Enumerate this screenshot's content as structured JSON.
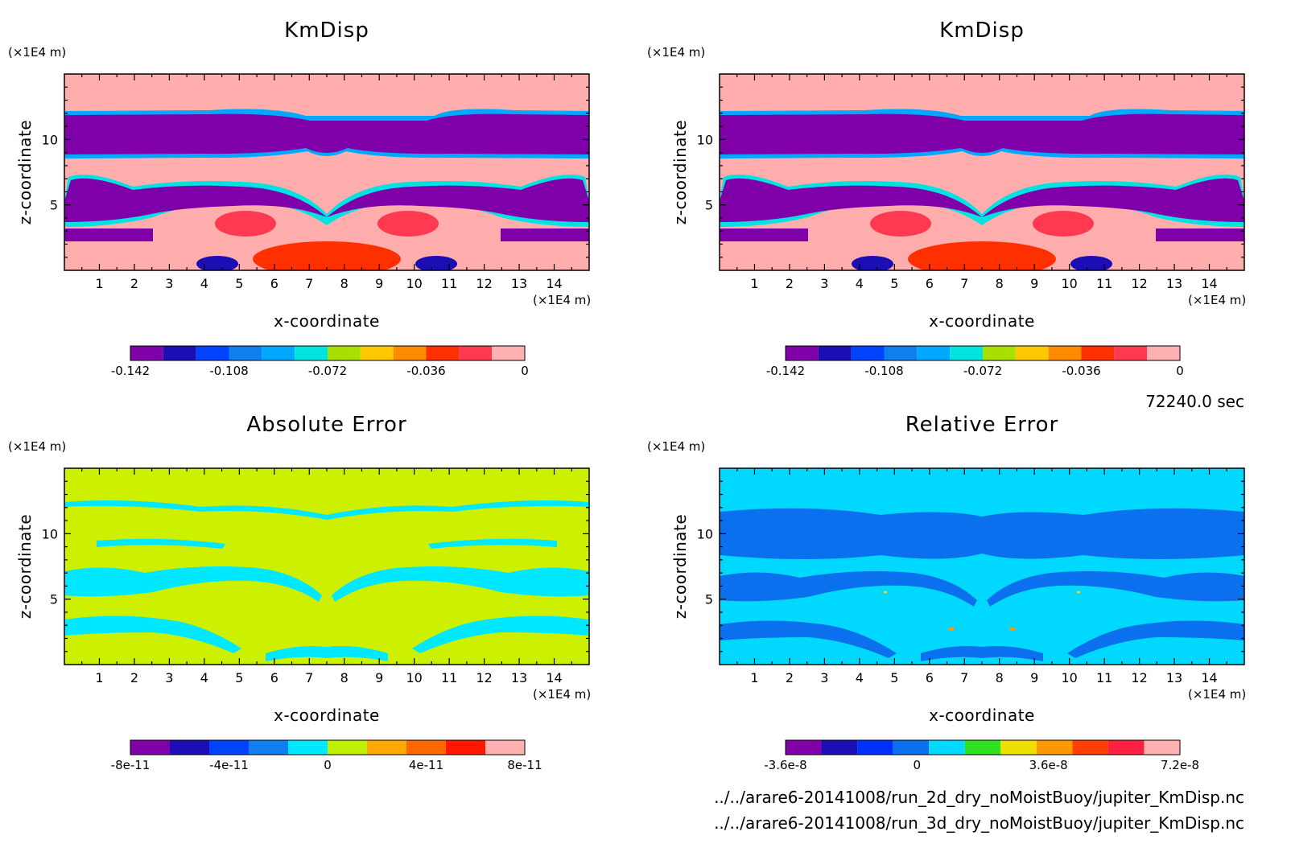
{
  "time_label": "72240.0 sec",
  "file_paths": [
    "../../arare6-20141008/run_2d_dry_noMoistBuoy/jupiter_KmDisp.nc",
    "../../arare6-20141008/run_3d_dry_noMoistBuoy/jupiter_KmDisp.nc"
  ],
  "chart_data": [
    {
      "type": "heatmap",
      "title": "KmDisp",
      "xlabel": "x-coordinate",
      "ylabel": "z-coordinate",
      "x_unit": "(×1E4 m)",
      "y_unit": "(×1E4 m)",
      "xlim": [
        0,
        15
      ],
      "ylim": [
        0,
        15
      ],
      "x_ticks": [
        "1",
        "2",
        "3",
        "4",
        "5",
        "6",
        "7",
        "8",
        "9",
        "10",
        "11",
        "12",
        "13",
        "14"
      ],
      "y_ticks": [
        "5",
        "10"
      ],
      "colorbar": {
        "colors": [
          "#7f00a8",
          "#1a0eb4",
          "#0043ff",
          "#0f7ff0",
          "#00a8ff",
          "#00e3e0",
          "#a8e000",
          "#ffc800",
          "#ff8c00",
          "#ff3000",
          "#ff3a50",
          "#ffb0b0"
        ],
        "tick_labels": [
          "-0.142",
          "-0.108",
          "-0.072",
          "-0.036",
          "0"
        ]
      },
      "background_color": "#ffadad",
      "field_note": "mirror-symmetric about x=7.5; dark purple band near z=10, purple/blue lobes near z=5 and z=2.5, red patches near ground"
    },
    {
      "type": "heatmap",
      "title": "KmDisp",
      "xlabel": "x-coordinate",
      "ylabel": "z-coordinate",
      "x_unit": "(×1E4 m)",
      "y_unit": "(×1E4 m)",
      "xlim": [
        0,
        15
      ],
      "ylim": [
        0,
        15
      ],
      "x_ticks": [
        "1",
        "2",
        "3",
        "4",
        "5",
        "6",
        "7",
        "8",
        "9",
        "10",
        "11",
        "12",
        "13",
        "14"
      ],
      "y_ticks": [
        "5",
        "10"
      ],
      "colorbar": {
        "colors": [
          "#7f00a8",
          "#1a0eb4",
          "#0043ff",
          "#0f7ff0",
          "#00a8ff",
          "#00e3e0",
          "#a8e000",
          "#ffc800",
          "#ff8c00",
          "#ff3000",
          "#ff3a50",
          "#ffb0b0"
        ],
        "tick_labels": [
          "-0.142",
          "-0.108",
          "-0.072",
          "-0.036",
          "0"
        ]
      },
      "background_color": "#ffadad"
    },
    {
      "type": "heatmap",
      "title": "Absolute Error",
      "xlabel": "x-coordinate",
      "ylabel": "z-coordinate",
      "x_unit": "(×1E4 m)",
      "y_unit": "(×1E4 m)",
      "xlim": [
        0,
        15
      ],
      "ylim": [
        0,
        15
      ],
      "x_ticks": [
        "1",
        "2",
        "3",
        "4",
        "5",
        "6",
        "7",
        "8",
        "9",
        "10",
        "11",
        "12",
        "13",
        "14"
      ],
      "y_ticks": [
        "5",
        "10"
      ],
      "colorbar": {
        "colors": [
          "#7f00a8",
          "#1a0eb4",
          "#0043ff",
          "#0f7ff0",
          "#00e8ff",
          "#c0f000",
          "#ffa800",
          "#ff6800",
          "#ff1800",
          "#ffb0b0"
        ],
        "tick_labels": [
          "-8e-11",
          "-4e-11",
          "0",
          "4e-11",
          "8e-11"
        ]
      },
      "background_color": "#ccf000",
      "secondary_color": "#00e8ff"
    },
    {
      "type": "heatmap",
      "title": "Relative Error",
      "xlabel": "x-coordinate",
      "ylabel": "z-coordinate",
      "x_unit": "(×1E4 m)",
      "y_unit": "(×1E4 m)",
      "xlim": [
        0,
        15
      ],
      "ylim": [
        0,
        15
      ],
      "x_ticks": [
        "1",
        "2",
        "3",
        "4",
        "5",
        "6",
        "7",
        "8",
        "9",
        "10",
        "11",
        "12",
        "13",
        "14"
      ],
      "y_ticks": [
        "5",
        "10"
      ],
      "colorbar": {
        "colors": [
          "#7f00a8",
          "#1a0eb4",
          "#0030ff",
          "#0b70ee",
          "#00d8ff",
          "#30e020",
          "#f0e000",
          "#ff9800",
          "#ff4000",
          "#ff2040",
          "#ffb0b0"
        ],
        "tick_labels": [
          "-3.6e-8",
          "0",
          "3.6e-8",
          "7.2e-8"
        ]
      },
      "background_color": "#00d8ff",
      "secondary_color": "#0b70ee"
    }
  ]
}
